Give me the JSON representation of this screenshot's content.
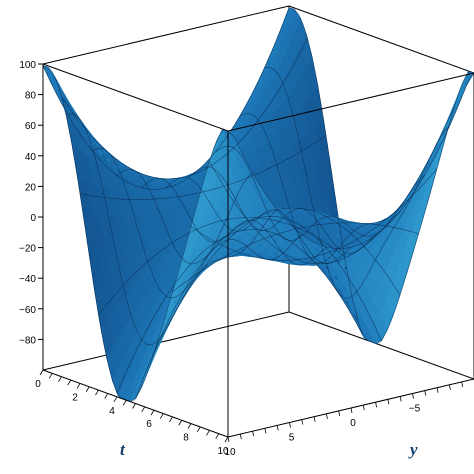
{
  "chart_data": {
    "type": "surface3d",
    "xlabel": "t",
    "ylabel": "y",
    "zlabel": "",
    "t_range": [
      0,
      10
    ],
    "y_range": [
      -10,
      10
    ],
    "z_range": [
      -100,
      100
    ],
    "t_ticks": [
      0,
      2,
      4,
      6,
      8,
      10
    ],
    "y_ticks": [
      10,
      5,
      0,
      -5
    ],
    "z_ticks": [
      100,
      80,
      60,
      40,
      20,
      0,
      -20,
      -40,
      -60,
      -80
    ],
    "surface": {
      "t": [
        0,
        1,
        2,
        3,
        4,
        5,
        6,
        7,
        8,
        9,
        10
      ],
      "y": [
        -10,
        -8,
        -6,
        -4,
        -2,
        0,
        2,
        4,
        6,
        8,
        10
      ],
      "z_note_free": true
    },
    "colors": {
      "surface_dark": "#0b3f78",
      "surface_mid": "#1e78b8",
      "surface_light": "#4fd8f6",
      "box": "#000000",
      "axis_title": "#123d66"
    },
    "grid": false,
    "box": true
  }
}
